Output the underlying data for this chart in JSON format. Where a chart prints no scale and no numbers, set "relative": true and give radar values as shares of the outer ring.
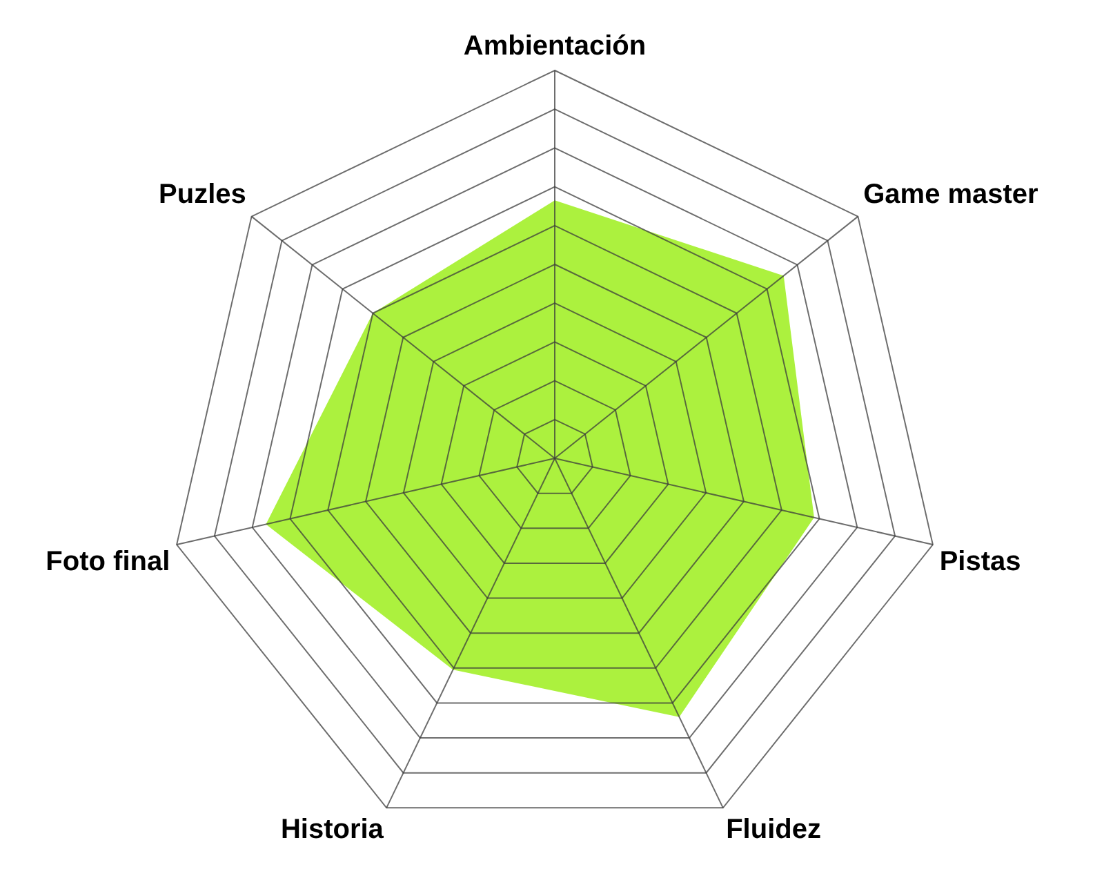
{
  "chart_data": {
    "type": "radar",
    "relative": true,
    "categories": [
      "Ambientación",
      "Game master",
      "Pistas",
      "Fluidez",
      "Historia",
      "Foto final",
      "Puzles"
    ],
    "series": [
      {
        "color": "#a3ef29",
        "values": [
          0.665,
          0.755,
          0.686,
          0.74,
          0.605,
          0.764,
          0.6
        ]
      }
    ],
    "grid": true,
    "legend": false
  }
}
